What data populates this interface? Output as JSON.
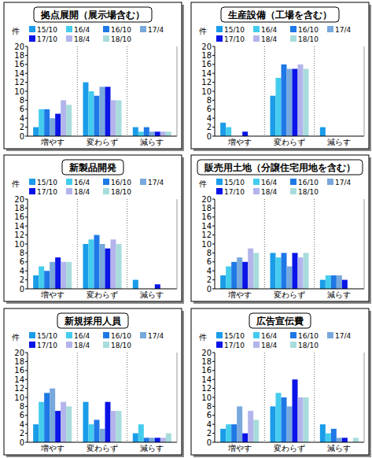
{
  "chart_data": [
    {
      "type": "bar",
      "title": "拠点展開（展示場含む）",
      "y_label": "件",
      "categories": [
        "増やす",
        "変わらず",
        "減らす"
      ],
      "ylim": [
        0,
        20
      ],
      "yticks": [
        0,
        2,
        4,
        6,
        8,
        10,
        12,
        14,
        16,
        18,
        20
      ],
      "grid": false,
      "legend": "top",
      "series": [
        {
          "name": "15/10",
          "color": "#1a9ce8",
          "values": [
            2,
            12,
            2
          ]
        },
        {
          "name": "16/4",
          "color": "#44ccee",
          "values": [
            6,
            10,
            1
          ]
        },
        {
          "name": "16/10",
          "color": "#1e78e6",
          "values": [
            6,
            9,
            2
          ]
        },
        {
          "name": "17/4",
          "color": "#78a8dc",
          "values": [
            4,
            11,
            1
          ]
        },
        {
          "name": "17/10",
          "color": "#0a14e6",
          "values": [
            5,
            11,
            1
          ]
        },
        {
          "name": "18/4",
          "color": "#b4b4ec",
          "values": [
            8,
            8,
            1
          ]
        },
        {
          "name": "18/10",
          "color": "#a8dcdc",
          "values": [
            7,
            8,
            1
          ]
        }
      ]
    },
    {
      "type": "bar",
      "title": "生産設備（工場を含む）",
      "y_label": "件",
      "categories": [
        "増やす",
        "変わらず",
        "減らす"
      ],
      "ylim": [
        0,
        20
      ],
      "yticks": [
        0,
        2,
        4,
        6,
        8,
        10,
        12,
        14,
        16,
        18,
        20
      ],
      "grid": false,
      "legend": "top",
      "series": [
        {
          "name": "15/10",
          "color": "#1a9ce8",
          "values": [
            3,
            9,
            2
          ]
        },
        {
          "name": "16/4",
          "color": "#44ccee",
          "values": [
            2,
            13,
            0
          ]
        },
        {
          "name": "16/10",
          "color": "#1e78e6",
          "values": [
            0,
            16,
            0
          ]
        },
        {
          "name": "17/4",
          "color": "#78a8dc",
          "values": [
            0,
            15,
            0
          ]
        },
        {
          "name": "17/10",
          "color": "#0a14e6",
          "values": [
            1,
            15,
            0
          ]
        },
        {
          "name": "18/4",
          "color": "#b4b4ec",
          "values": [
            0,
            16,
            0
          ]
        },
        {
          "name": "18/10",
          "color": "#a8dcdc",
          "values": [
            0,
            15,
            0
          ]
        }
      ]
    },
    {
      "type": "bar",
      "title": "新製品開発",
      "y_label": "件",
      "categories": [
        "増やす",
        "変わらず",
        "減らす"
      ],
      "ylim": [
        0,
        20
      ],
      "yticks": [
        0,
        2,
        4,
        6,
        8,
        10,
        12,
        14,
        16,
        18,
        20
      ],
      "grid": false,
      "legend": "top",
      "series": [
        {
          "name": "15/10",
          "color": "#1a9ce8",
          "values": [
            3,
            10,
            2
          ]
        },
        {
          "name": "16/4",
          "color": "#44ccee",
          "values": [
            5,
            11,
            0
          ]
        },
        {
          "name": "16/10",
          "color": "#1e78e6",
          "values": [
            4,
            12,
            0
          ]
        },
        {
          "name": "17/4",
          "color": "#78a8dc",
          "values": [
            6,
            10,
            0
          ]
        },
        {
          "name": "17/10",
          "color": "#0a14e6",
          "values": [
            7,
            9,
            1
          ]
        },
        {
          "name": "18/4",
          "color": "#b4b4ec",
          "values": [
            6,
            11,
            0
          ]
        },
        {
          "name": "18/10",
          "color": "#a8dcdc",
          "values": [
            6,
            10,
            0
          ]
        }
      ]
    },
    {
      "type": "bar",
      "title": "販売用土地（分譲住宅用地を含む）",
      "y_label": "件",
      "categories": [
        "増やす",
        "変わらず",
        "減らす"
      ],
      "ylim": [
        0,
        20
      ],
      "yticks": [
        0,
        2,
        4,
        6,
        8,
        10,
        12,
        14,
        16,
        18,
        20
      ],
      "grid": false,
      "legend": "top",
      "series": [
        {
          "name": "15/10",
          "color": "#1a9ce8",
          "values": [
            3,
            8,
            2
          ]
        },
        {
          "name": "16/4",
          "color": "#44ccee",
          "values": [
            5,
            7,
            3
          ]
        },
        {
          "name": "16/10",
          "color": "#1e78e6",
          "values": [
            6,
            8,
            3
          ]
        },
        {
          "name": "17/4",
          "color": "#78a8dc",
          "values": [
            7,
            5,
            3
          ]
        },
        {
          "name": "17/10",
          "color": "#0a14e6",
          "values": [
            6,
            8,
            2
          ]
        },
        {
          "name": "18/4",
          "color": "#b4b4ec",
          "values": [
            9,
            7,
            0
          ]
        },
        {
          "name": "18/10",
          "color": "#a8dcdc",
          "values": [
            8,
            8,
            0
          ]
        }
      ]
    },
    {
      "type": "bar",
      "title": "新規採用人員",
      "y_label": "件",
      "categories": [
        "増やす",
        "変わらず",
        "減らす"
      ],
      "ylim": [
        0,
        20
      ],
      "yticks": [
        0,
        2,
        4,
        6,
        8,
        10,
        12,
        14,
        16,
        18,
        20
      ],
      "grid": false,
      "legend": "top",
      "series": [
        {
          "name": "15/10",
          "color": "#1a9ce8",
          "values": [
            4,
            9,
            2
          ]
        },
        {
          "name": "16/4",
          "color": "#44ccee",
          "values": [
            9,
            4,
            4
          ]
        },
        {
          "name": "16/10",
          "color": "#1e78e6",
          "values": [
            11,
            5,
            1
          ]
        },
        {
          "name": "17/4",
          "color": "#78a8dc",
          "values": [
            12,
            3,
            1
          ]
        },
        {
          "name": "17/10",
          "color": "#0a14e6",
          "values": [
            7,
            9,
            1
          ]
        },
        {
          "name": "18/4",
          "color": "#b4b4ec",
          "values": [
            9,
            7,
            1
          ]
        },
        {
          "name": "18/10",
          "color": "#a8dcdc",
          "values": [
            8,
            7,
            2
          ]
        }
      ]
    },
    {
      "type": "bar",
      "title": "広告宣伝費",
      "y_label": "件",
      "categories": [
        "増やす",
        "変わらず",
        "減らす"
      ],
      "ylim": [
        0,
        20
      ],
      "yticks": [
        0,
        2,
        4,
        6,
        8,
        10,
        12,
        14,
        16,
        18,
        20
      ],
      "grid": false,
      "legend": "top",
      "series": [
        {
          "name": "15/10",
          "color": "#1a9ce8",
          "values": [
            3,
            8,
            4
          ]
        },
        {
          "name": "16/4",
          "color": "#44ccee",
          "values": [
            4,
            11,
            2
          ]
        },
        {
          "name": "16/10",
          "color": "#1e78e6",
          "values": [
            4,
            10,
            3
          ]
        },
        {
          "name": "17/4",
          "color": "#78a8dc",
          "values": [
            8,
            8,
            1
          ]
        },
        {
          "name": "17/10",
          "color": "#0a14e6",
          "values": [
            2,
            14,
            1
          ]
        },
        {
          "name": "18/4",
          "color": "#b4b4ec",
          "values": [
            7,
            10,
            0
          ]
        },
        {
          "name": "18/10",
          "color": "#a8dcdc",
          "values": [
            5,
            10,
            1
          ]
        }
      ]
    }
  ]
}
